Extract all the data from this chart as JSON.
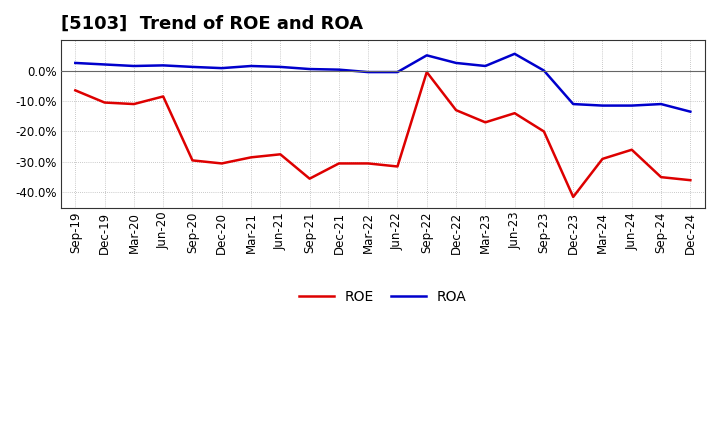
{
  "title": "[5103]  Trend of ROE and ROA",
  "labels": [
    "Sep-19",
    "Dec-19",
    "Mar-20",
    "Jun-20",
    "Sep-20",
    "Dec-20",
    "Mar-21",
    "Jun-21",
    "Sep-21",
    "Dec-21",
    "Mar-22",
    "Jun-22",
    "Sep-22",
    "Dec-22",
    "Mar-23",
    "Jun-23",
    "Sep-23",
    "Dec-23",
    "Mar-24",
    "Jun-24",
    "Sep-24",
    "Dec-24"
  ],
  "ROE": [
    -6.5,
    -10.5,
    -11.0,
    -8.5,
    -29.5,
    -30.5,
    -28.5,
    -27.5,
    -35.5,
    -30.5,
    -30.5,
    -31.5,
    -0.5,
    -13.0,
    -17.0,
    -14.0,
    -20.0,
    -41.5,
    -29.0,
    -26.0,
    -35.0,
    -36.0
  ],
  "ROA": [
    2.5,
    2.0,
    1.5,
    1.7,
    1.2,
    0.8,
    1.5,
    1.2,
    0.5,
    0.3,
    -0.5,
    -0.5,
    5.0,
    2.5,
    1.5,
    5.5,
    0.0,
    -11.0,
    -11.5,
    -11.5,
    -11.0,
    -13.5
  ],
  "roe_color": "#dd0000",
  "roa_color": "#0000cc",
  "bg_color": "#ffffff",
  "plot_bg_color": "#ffffff",
  "grid_color": "#999999",
  "ylim": [
    -45,
    10
  ],
  "yticks": [
    -40,
    -30,
    -20,
    -10,
    0
  ],
  "ytick_labels": [
    "-40.0%",
    "-30.0%",
    "-20.0%",
    "-10.0%",
    "0.0%"
  ],
  "line_width": 1.8,
  "title_fontsize": 13,
  "tick_fontsize": 8.5,
  "legend_fontsize": 10
}
